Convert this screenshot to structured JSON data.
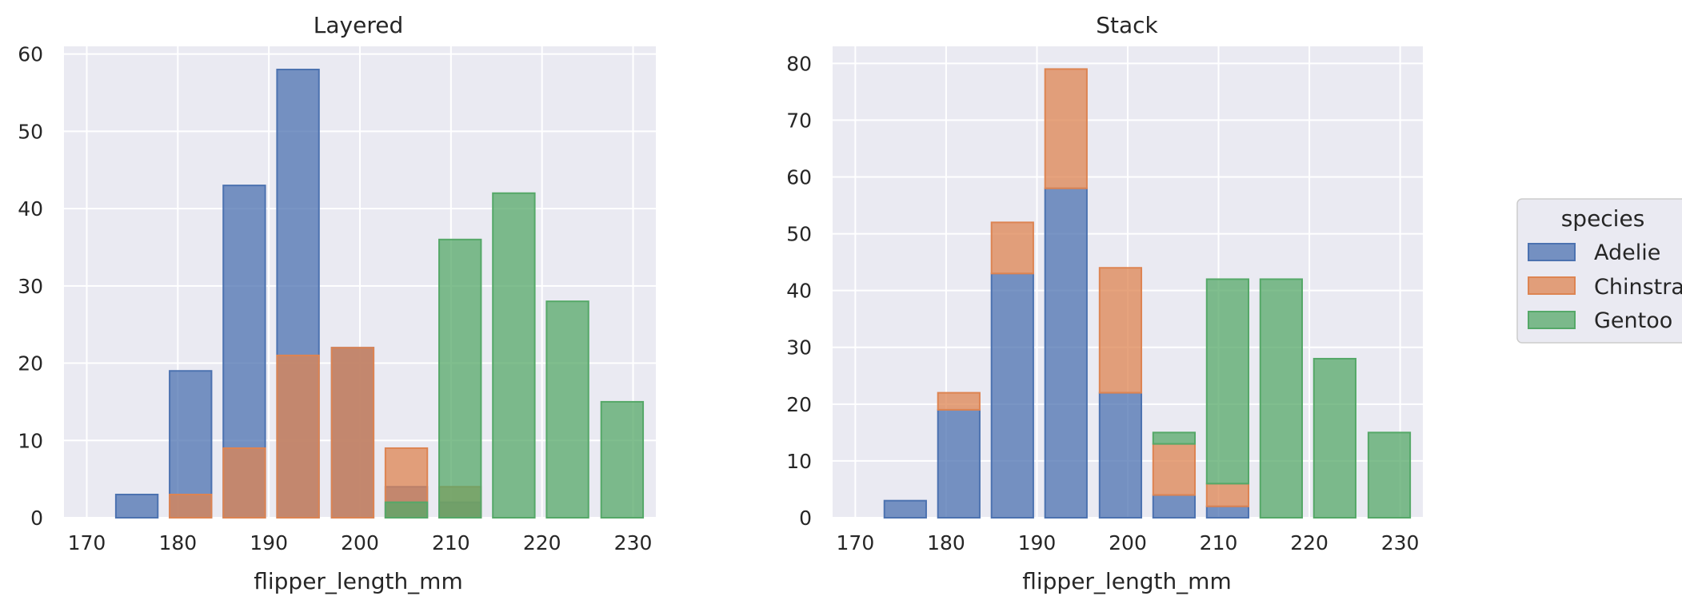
{
  "colors": {
    "Adelie": "#4c72b0",
    "Chinstrap": "#dd8452",
    "Gentoo": "#55a868",
    "panel_background": "#eaeaf2",
    "grid": "#ffffff"
  },
  "legend": {
    "title": "species",
    "entries": [
      "Adelie",
      "Chinstrap",
      "Gentoo"
    ]
  },
  "chart_data": [
    {
      "type": "bar",
      "title": "Layered",
      "mode": "layered",
      "xlabel": "flipper_length_mm",
      "ylabel": "",
      "xlim": [
        167.5,
        232.5
      ],
      "ylim": [
        0,
        61
      ],
      "xticks": [
        170,
        180,
        190,
        200,
        210,
        220,
        230
      ],
      "yticks": [
        0,
        10,
        20,
        30,
        40,
        50,
        60
      ],
      "grid": true,
      "bin_centers": [
        175.5,
        181.4,
        187.3,
        193.2,
        199.2,
        205.1,
        211.0,
        216.9,
        222.8,
        228.8
      ],
      "bin_width": 5.9,
      "bar_width": 4.6,
      "series": [
        {
          "name": "Adelie",
          "values": [
            3,
            19,
            43,
            58,
            22,
            4,
            2,
            0,
            0,
            0
          ]
        },
        {
          "name": "Chinstrap",
          "values": [
            0,
            3,
            9,
            21,
            22,
            9,
            4,
            0,
            0,
            0
          ]
        },
        {
          "name": "Gentoo",
          "values": [
            0,
            0,
            0,
            0,
            0,
            2,
            36,
            42,
            28,
            15
          ]
        }
      ]
    },
    {
      "type": "bar",
      "title": "Stack",
      "mode": "stacked",
      "xlabel": "flipper_length_mm",
      "ylabel": "",
      "xlim": [
        167.5,
        232.5
      ],
      "ylim": [
        0,
        83
      ],
      "xticks": [
        170,
        180,
        190,
        200,
        210,
        220,
        230
      ],
      "yticks": [
        0,
        10,
        20,
        30,
        40,
        50,
        60,
        70,
        80
      ],
      "grid": true,
      "bin_centers": [
        175.5,
        181.4,
        187.3,
        193.2,
        199.2,
        205.1,
        211.0,
        216.9,
        222.8,
        228.8
      ],
      "bin_width": 5.9,
      "bar_width": 4.6,
      "series": [
        {
          "name": "Adelie",
          "values": [
            3,
            19,
            43,
            58,
            22,
            4,
            2,
            0,
            0,
            0
          ]
        },
        {
          "name": "Chinstrap",
          "values": [
            0,
            3,
            9,
            21,
            22,
            9,
            4,
            0,
            0,
            0
          ]
        },
        {
          "name": "Gentoo",
          "values": [
            0,
            0,
            0,
            0,
            0,
            2,
            36,
            42,
            28,
            15
          ]
        }
      ]
    }
  ]
}
